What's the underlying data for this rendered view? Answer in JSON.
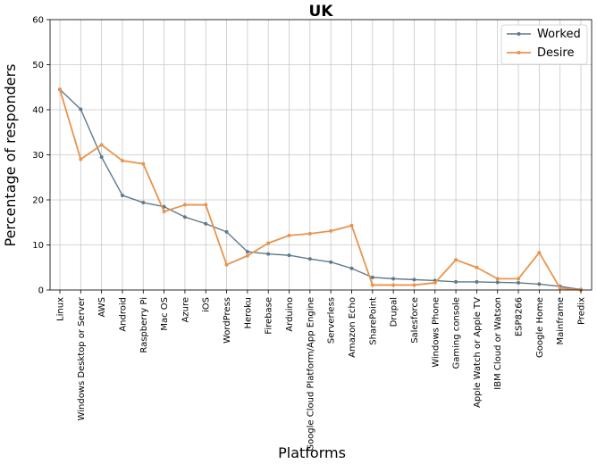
{
  "chart_data": {
    "type": "line",
    "title": "UK",
    "xlabel": "Platforms",
    "ylabel": "Percentage of responders",
    "ylim": [
      0,
      60
    ],
    "yticks": [
      0,
      10,
      20,
      30,
      40,
      50,
      60
    ],
    "grid": true,
    "legend_position": "top-right",
    "categories": [
      "Linux",
      "Windows Desktop or Server",
      "AWS",
      "Android",
      "Raspberry Pi",
      "Mac OS",
      "Azure",
      "iOS",
      "WordPress",
      "Heroku",
      "Firebase",
      "Arduino",
      "Google Cloud Platform/App Engine",
      "Serverless",
      "Amazon Echo",
      "SharePoint",
      "Drupal",
      "Salesforce",
      "Windows Phone",
      "Gaming console",
      "Apple Watch or Apple TV",
      "IBM Cloud or Watson",
      "ESP8266",
      "Google Home",
      "Mainframe",
      "Predix"
    ],
    "series": [
      {
        "name": "Worked",
        "color": "#5f7a8c",
        "values": [
          44.5,
          40.1,
          29.5,
          21.0,
          19.4,
          18.5,
          16.2,
          14.7,
          12.9,
          8.5,
          8.0,
          7.7,
          6.9,
          6.2,
          4.8,
          2.8,
          2.5,
          2.3,
          2.1,
          1.8,
          1.8,
          1.7,
          1.6,
          1.3,
          0.8,
          0.1
        ]
      },
      {
        "name": "Desire",
        "color": "#e8944e",
        "values": [
          44.5,
          29.0,
          32.2,
          28.7,
          28.0,
          17.4,
          18.9,
          18.9,
          5.6,
          7.6,
          10.4,
          12.1,
          12.5,
          13.1,
          14.3,
          1.1,
          1.1,
          1.1,
          1.6,
          6.7,
          5.0,
          2.5,
          2.5,
          8.3,
          0.4,
          0.0
        ]
      }
    ]
  }
}
